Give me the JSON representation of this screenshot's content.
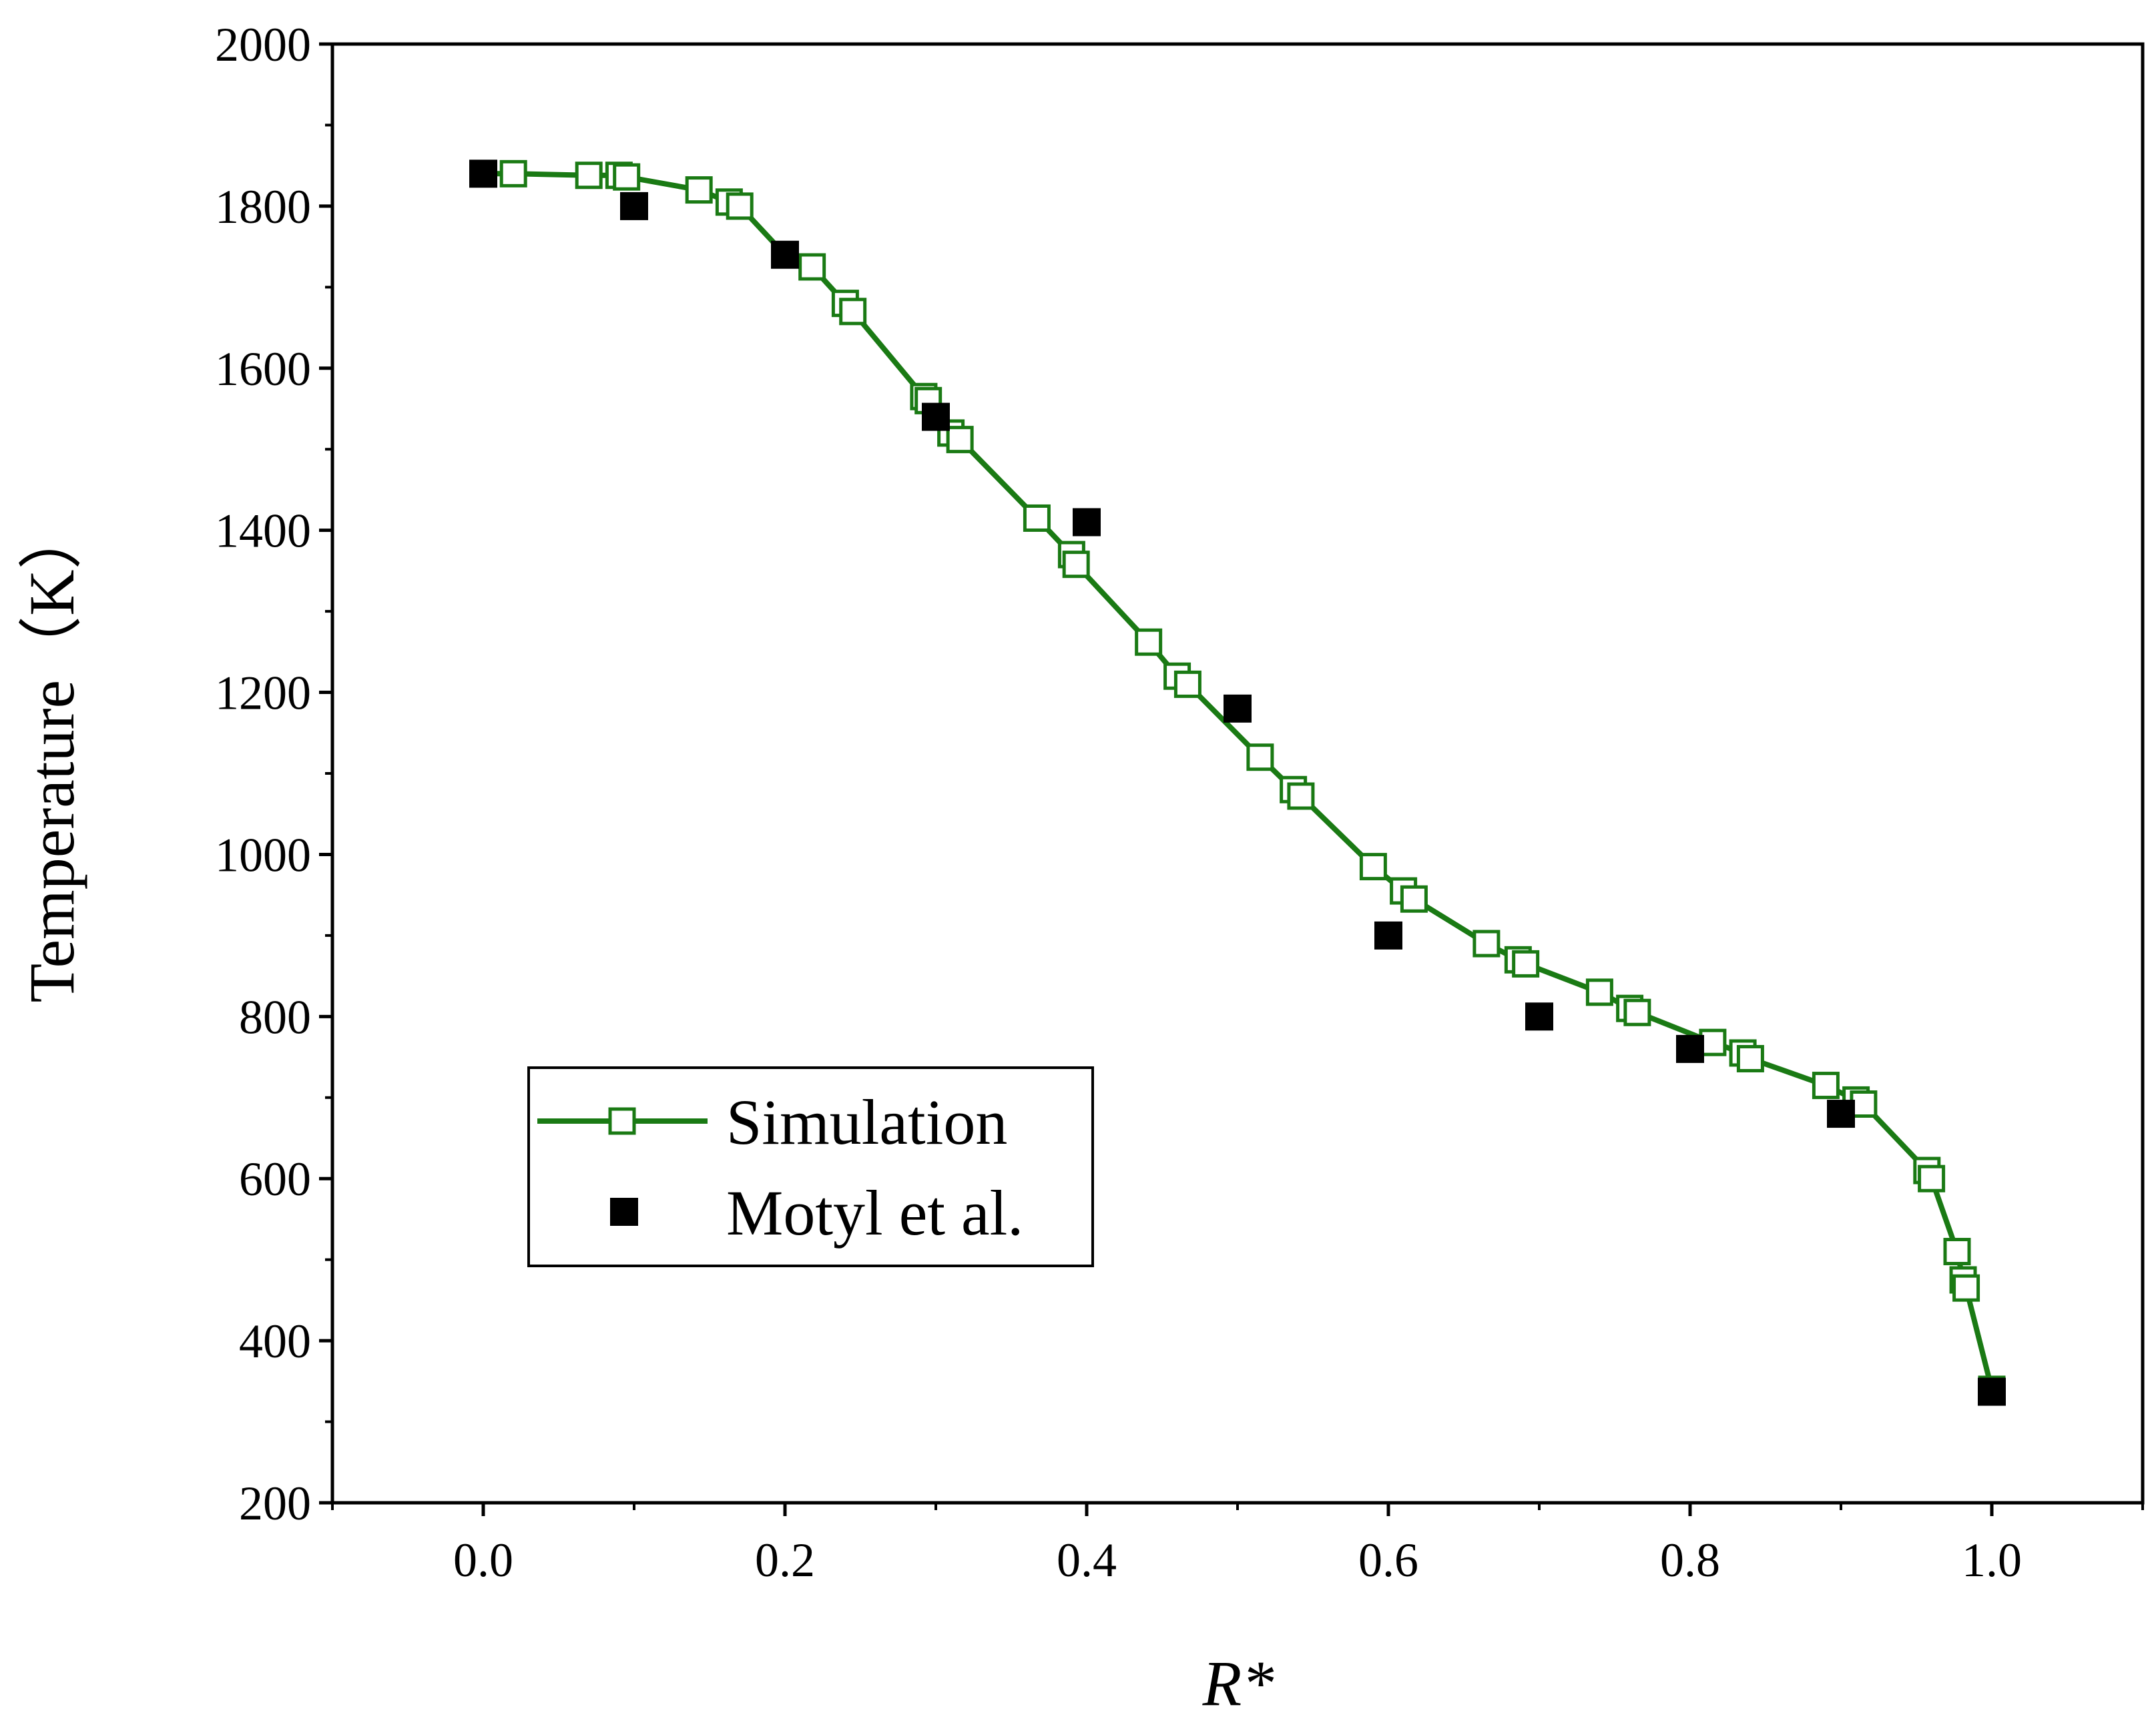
{
  "chart_data": {
    "type": "line",
    "title": "",
    "xlabel": "R*",
    "ylabel": "Temperature（K）",
    "xlim": [
      -0.1,
      1.1
    ],
    "ylim": [
      200,
      2000
    ],
    "xticks": [
      "0.0",
      "0.2",
      "0.4",
      "0.6",
      "0.8",
      "1.0"
    ],
    "yticks": [
      "200",
      "400",
      "600",
      "800",
      "1000",
      "1200",
      "1400",
      "1600",
      "1800",
      "2000"
    ],
    "colors": {
      "simulation": "#1a7a14",
      "experiment": "#000000"
    },
    "legend_position": "lower-left",
    "series": [
      {
        "name": "Simulation",
        "style": "line-open-square",
        "x": [
          0.0,
          0.02,
          0.07,
          0.09,
          0.095,
          0.143,
          0.163,
          0.17,
          0.2,
          0.218,
          0.24,
          0.245,
          0.292,
          0.295,
          0.31,
          0.316,
          0.367,
          0.39,
          0.393,
          0.441,
          0.46,
          0.467,
          0.515,
          0.537,
          0.542,
          0.59,
          0.61,
          0.617,
          0.665,
          0.686,
          0.691,
          0.74,
          0.76,
          0.765,
          0.815,
          0.835,
          0.84,
          0.89,
          0.91,
          0.915,
          0.957,
          0.96,
          0.977,
          0.981,
          0.983,
          1.0
        ],
        "y": [
          1840,
          1840,
          1838,
          1838,
          1836,
          1820,
          1805,
          1800,
          1740,
          1725,
          1680,
          1670,
          1565,
          1560,
          1520,
          1512,
          1415,
          1370,
          1358,
          1262,
          1220,
          1210,
          1120,
          1080,
          1072,
          985,
          955,
          945,
          890,
          870,
          865,
          830,
          810,
          805,
          768,
          755,
          748,
          715,
          697,
          692,
          610,
          600,
          510,
          475,
          465,
          340
        ]
      },
      {
        "name": "Motyl et al.",
        "style": "filled-square",
        "x": [
          0.0,
          0.1,
          0.2,
          0.3,
          0.4,
          0.5,
          0.6,
          0.7,
          0.8,
          0.9,
          1.0
        ],
        "y": [
          1840,
          1800,
          1740,
          1540,
          1410,
          1180,
          900,
          800,
          760,
          680,
          337
        ]
      }
    ]
  }
}
